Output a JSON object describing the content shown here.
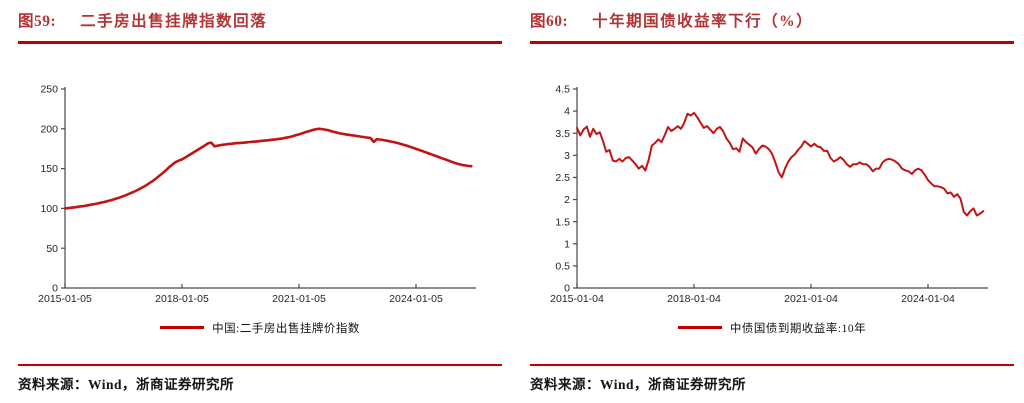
{
  "colors": {
    "rule_red": "#c00000",
    "title_red": "#b23434",
    "line_red": "#c11414",
    "axis_gray": "#4a4a4a",
    "tick_text": "#262626",
    "body_text": "#141414"
  },
  "figures": [
    {
      "label": "图59:",
      "title": "二手房出售挂牌指数回落",
      "legend_label": "中国:二手房出售挂牌价指数",
      "source_label": "资料来源：Wind，浙商证券研究所"
    },
    {
      "label": "图60:",
      "title": "十年期国债收益率下行（%）",
      "legend_label": "中债国债到期收益率:10年",
      "source_label": "资料来源：Wind，浙商证券研究所"
    }
  ],
  "chart_data": [
    {
      "type": "line",
      "title": "二手房出售挂牌指数回落",
      "x_start": "2015-01",
      "x_end": "2025-06",
      "x_interval": "monthly",
      "x_tick_labels": [
        "2015-01-05",
        "2018-01-05",
        "2021-01-05",
        "2024-01-05"
      ],
      "x_tick_positions_months": [
        0,
        36,
        72,
        108
      ],
      "y_ticks": [
        "0",
        "50",
        "100",
        "150",
        "200",
        "250"
      ],
      "ylim": [
        0,
        250
      ],
      "grid": false,
      "legend_position": "bottom",
      "stroke_width": 2.6,
      "series": [
        {
          "name": "中国:二手房出售挂牌价指数",
          "color": "#c11414",
          "values": [
            100.0,
            100.4,
            100.9,
            101.4,
            102.0,
            102.6,
            103.2,
            103.9,
            104.6,
            105.4,
            106.2,
            107.1,
            108.0,
            109.0,
            110.1,
            111.3,
            112.6,
            114.0,
            115.5,
            117.1,
            118.8,
            120.6,
            122.5,
            124.6,
            126.8,
            129.2,
            131.8,
            134.6,
            137.6,
            140.8,
            144.2,
            147.8,
            151.6,
            155.0,
            158.0,
            160.0,
            161.5,
            164.0,
            166.5,
            169.0,
            171.5,
            174.0,
            176.5,
            179.0,
            181.8,
            182.5,
            178.0,
            178.8,
            179.6,
            180.2,
            180.8,
            181.2,
            181.6,
            182.0,
            182.3,
            182.6,
            183.0,
            183.4,
            183.8,
            184.2,
            184.6,
            185.0,
            185.4,
            185.8,
            186.3,
            186.8,
            187.4,
            188.0,
            188.8,
            189.6,
            190.6,
            191.8,
            193.0,
            194.4,
            195.8,
            197.0,
            198.2,
            199.2,
            200.0,
            199.6,
            199.0,
            198.2,
            197.0,
            195.8,
            194.8,
            194.0,
            193.2,
            192.6,
            192.0,
            191.4,
            190.8,
            190.2,
            189.6,
            189.0,
            188.4,
            183.5,
            187.0,
            186.4,
            185.8,
            185.0,
            184.2,
            183.4,
            182.4,
            181.4,
            180.2,
            179.0,
            177.6,
            176.2,
            174.8,
            173.4,
            172.0,
            170.5,
            169.0,
            167.5,
            166.0,
            164.5,
            163.0,
            161.5,
            160.0,
            158.5,
            157.0,
            155.8,
            154.8,
            154.0,
            153.4,
            153.0
          ]
        }
      ]
    },
    {
      "type": "line",
      "title": "十年期国债收益率下行（%）",
      "x_start": "2015-01",
      "x_end": "2025-06",
      "x_interval": "monthly",
      "x_tick_labels": [
        "2015-01-04",
        "2018-01-04",
        "2021-01-04",
        "2024-01-04"
      ],
      "x_tick_positions_months": [
        0,
        36,
        72,
        108
      ],
      "y_ticks": [
        "0",
        "0.5",
        "1",
        "1.5",
        "2",
        "2.5",
        "3",
        "3.5",
        "4",
        "4.5"
      ],
      "ylim": [
        0,
        4.5
      ],
      "grid": false,
      "legend_position": "bottom",
      "stroke_width": 2.0,
      "series": [
        {
          "name": "中债国债到期收益率:10年",
          "color": "#c11414",
          "values": [
            3.62,
            3.45,
            3.58,
            3.65,
            3.42,
            3.6,
            3.48,
            3.52,
            3.32,
            3.08,
            3.12,
            2.88,
            2.86,
            2.92,
            2.86,
            2.94,
            2.96,
            2.88,
            2.8,
            2.7,
            2.76,
            2.66,
            2.88,
            3.22,
            3.28,
            3.36,
            3.3,
            3.46,
            3.64,
            3.55,
            3.6,
            3.66,
            3.6,
            3.74,
            3.94,
            3.9,
            3.96,
            3.86,
            3.74,
            3.62,
            3.66,
            3.58,
            3.5,
            3.6,
            3.64,
            3.54,
            3.38,
            3.28,
            3.14,
            3.16,
            3.08,
            3.38,
            3.3,
            3.24,
            3.18,
            3.04,
            3.14,
            3.22,
            3.2,
            3.14,
            3.04,
            2.84,
            2.62,
            2.5,
            2.7,
            2.86,
            2.96,
            3.02,
            3.12,
            3.2,
            3.32,
            3.26,
            3.2,
            3.26,
            3.2,
            3.18,
            3.1,
            3.1,
            2.94,
            2.86,
            2.9,
            2.96,
            2.9,
            2.8,
            2.74,
            2.8,
            2.8,
            2.84,
            2.8,
            2.8,
            2.74,
            2.64,
            2.7,
            2.7,
            2.84,
            2.9,
            2.92,
            2.9,
            2.86,
            2.8,
            2.7,
            2.66,
            2.64,
            2.58,
            2.66,
            2.7,
            2.66,
            2.56,
            2.44,
            2.36,
            2.3,
            2.3,
            2.28,
            2.24,
            2.14,
            2.16,
            2.06,
            2.12,
            2.02,
            1.72,
            1.64,
            1.74,
            1.8,
            1.64,
            1.68,
            1.74
          ]
        }
      ]
    }
  ]
}
